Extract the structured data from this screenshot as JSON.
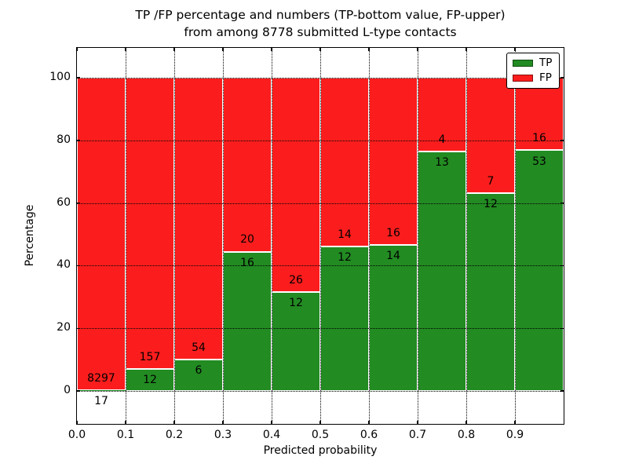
{
  "chart_data": {
    "type": "bar",
    "stacked": true,
    "normalized_to_percent": true,
    "title": "TP /FP percentage and numbers (TP-bottom value, FP-upper) from among 8778 submitted L-type contacts",
    "title_lines": [
      "TP /FP percentage and numbers (TP-bottom value, FP-upper)",
      "from among 8778 submitted L-type contacts"
    ],
    "xlabel": "Predicted probability",
    "ylabel": "Percentage",
    "total_contacts": 8778,
    "bin_edges": [
      0.0,
      0.1,
      0.2,
      0.3,
      0.4,
      0.5,
      0.6,
      0.7,
      0.8,
      0.9,
      1.0
    ],
    "x_tick_values": [
      0.0,
      0.1,
      0.2,
      0.3,
      0.4,
      0.5,
      0.6,
      0.7,
      0.8,
      0.9
    ],
    "x_tick_labels": [
      "0.0",
      "0.1",
      "0.2",
      "0.3",
      "0.4",
      "0.5",
      "0.6",
      "0.7",
      "0.8",
      "0.9"
    ],
    "y_tick_values": [
      0,
      20,
      40,
      60,
      80,
      100
    ],
    "y_tick_labels": [
      "0",
      "20",
      "40",
      "60",
      "80",
      "100"
    ],
    "xlim": [
      0.0,
      1.0
    ],
    "ylim": [
      -10.5,
      109.5
    ],
    "grid": "dotted",
    "series": [
      {
        "name": "TP",
        "color": "#228b22",
        "counts": [
          17,
          12,
          6,
          16,
          12,
          12,
          14,
          13,
          12,
          53
        ]
      },
      {
        "name": "FP",
        "color": "#fb1d1d",
        "counts": [
          8297,
          157,
          54,
          20,
          26,
          14,
          16,
          4,
          7,
          16
        ]
      }
    ],
    "tp_percent_of_bin": [
      0.2,
      7.1,
      10.0,
      44.4,
      31.6,
      46.2,
      46.7,
      76.5,
      63.2,
      76.8
    ],
    "legend": {
      "position": "upper right",
      "entries": [
        {
          "label": "TP",
          "color": "#228b22"
        },
        {
          "label": "FP",
          "color": "#fb1d1d"
        }
      ]
    }
  }
}
